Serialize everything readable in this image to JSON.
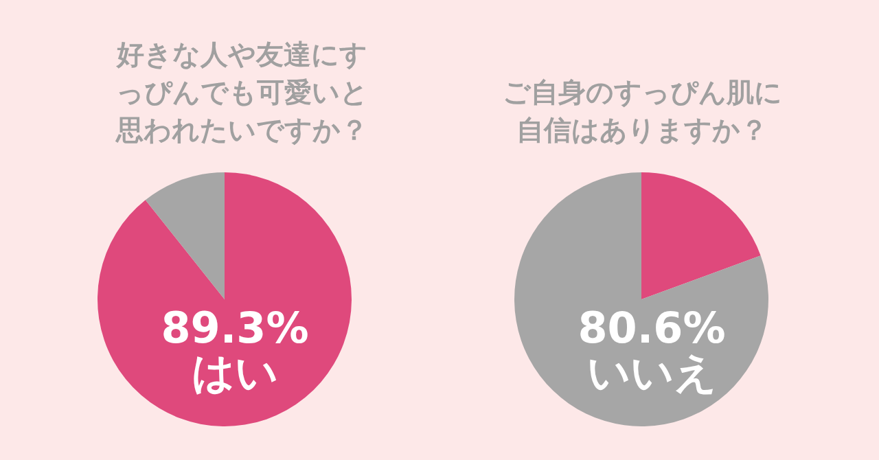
{
  "chart_data": [
    {
      "type": "pie",
      "title": "好きな人や友達にすっぴんでも可愛いと思われたいですか？",
      "categories": [
        "はい",
        null
      ],
      "values": [
        89.3,
        10.7
      ],
      "colors": [
        "#df497c",
        "#a6a6a6"
      ],
      "value_labels": [
        "89.3%",
        null
      ],
      "legend": false
    },
    {
      "type": "pie",
      "title": "ご自身のすっぴん肌に自信はありますか？",
      "categories": [
        null,
        "いいえ"
      ],
      "values": [
        19.4,
        80.6
      ],
      "colors": [
        "#df497c",
        "#a6a6a6"
      ],
      "value_labels": [
        null,
        "80.6%"
      ],
      "legend": false
    }
  ]
}
